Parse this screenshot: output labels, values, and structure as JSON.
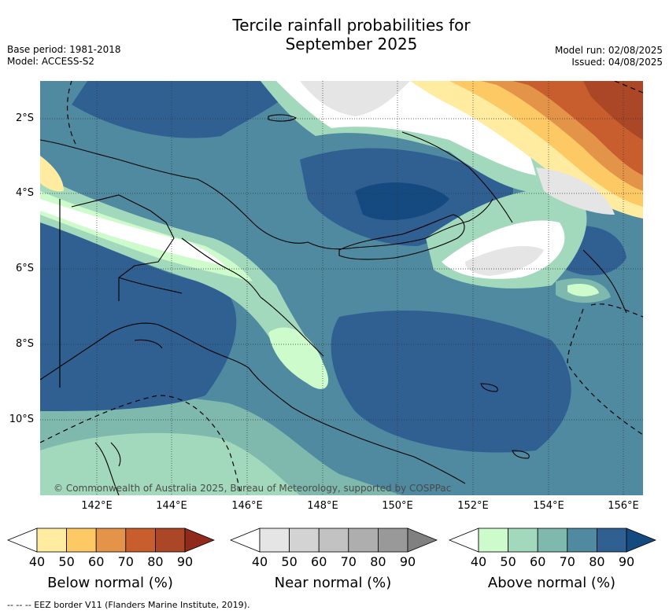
{
  "title_line1": "Tercile rainfall probabilities for",
  "title_line2": "September 2025",
  "base_period": "Base period: 1981-2018",
  "model": "Model: ACCESS-S2",
  "model_run": "Model run: 02/08/2025",
  "issued": "Issued: 04/08/2025",
  "lat_labels": [
    "2°S",
    "4°S",
    "6°S",
    "8°S",
    "10°S"
  ],
  "lon_labels": [
    "142°E",
    "144°E",
    "146°E",
    "148°E",
    "150°E",
    "152°E",
    "154°E",
    "156°E"
  ],
  "copyright": "© Commonwealth of Australia 2025, Bureau of Meteorology, supported by COSPPac",
  "legends": [
    {
      "title": "Below normal (%)",
      "ticks": [
        "40",
        "50",
        "60",
        "70",
        "80",
        "90"
      ],
      "colors": [
        "#ffffff",
        "#ffeca0",
        "#fdc964",
        "#e39449",
        "#c85e2d",
        "#ab4626",
        "#8f2a1c"
      ]
    },
    {
      "title": "Near normal (%)",
      "ticks": [
        "40",
        "50",
        "60",
        "70",
        "80",
        "90"
      ],
      "colors": [
        "#ffffff",
        "#e5e5e5",
        "#d3d3d3",
        "#c2c2c2",
        "#aeaeae",
        "#999999",
        "#808080"
      ]
    },
    {
      "title": "Above normal (%)",
      "ticks": [
        "40",
        "50",
        "60",
        "70",
        "80",
        "90"
      ],
      "colors": [
        "#ffffff",
        "#cdfbcc",
        "#a2d8bb",
        "#7fb8ad",
        "#4f8aa0",
        "#305f92",
        "#154a80"
      ]
    }
  ],
  "footer": "-- -- -- EEZ border V11 (Flanders Marine Institute, 2019)."
}
